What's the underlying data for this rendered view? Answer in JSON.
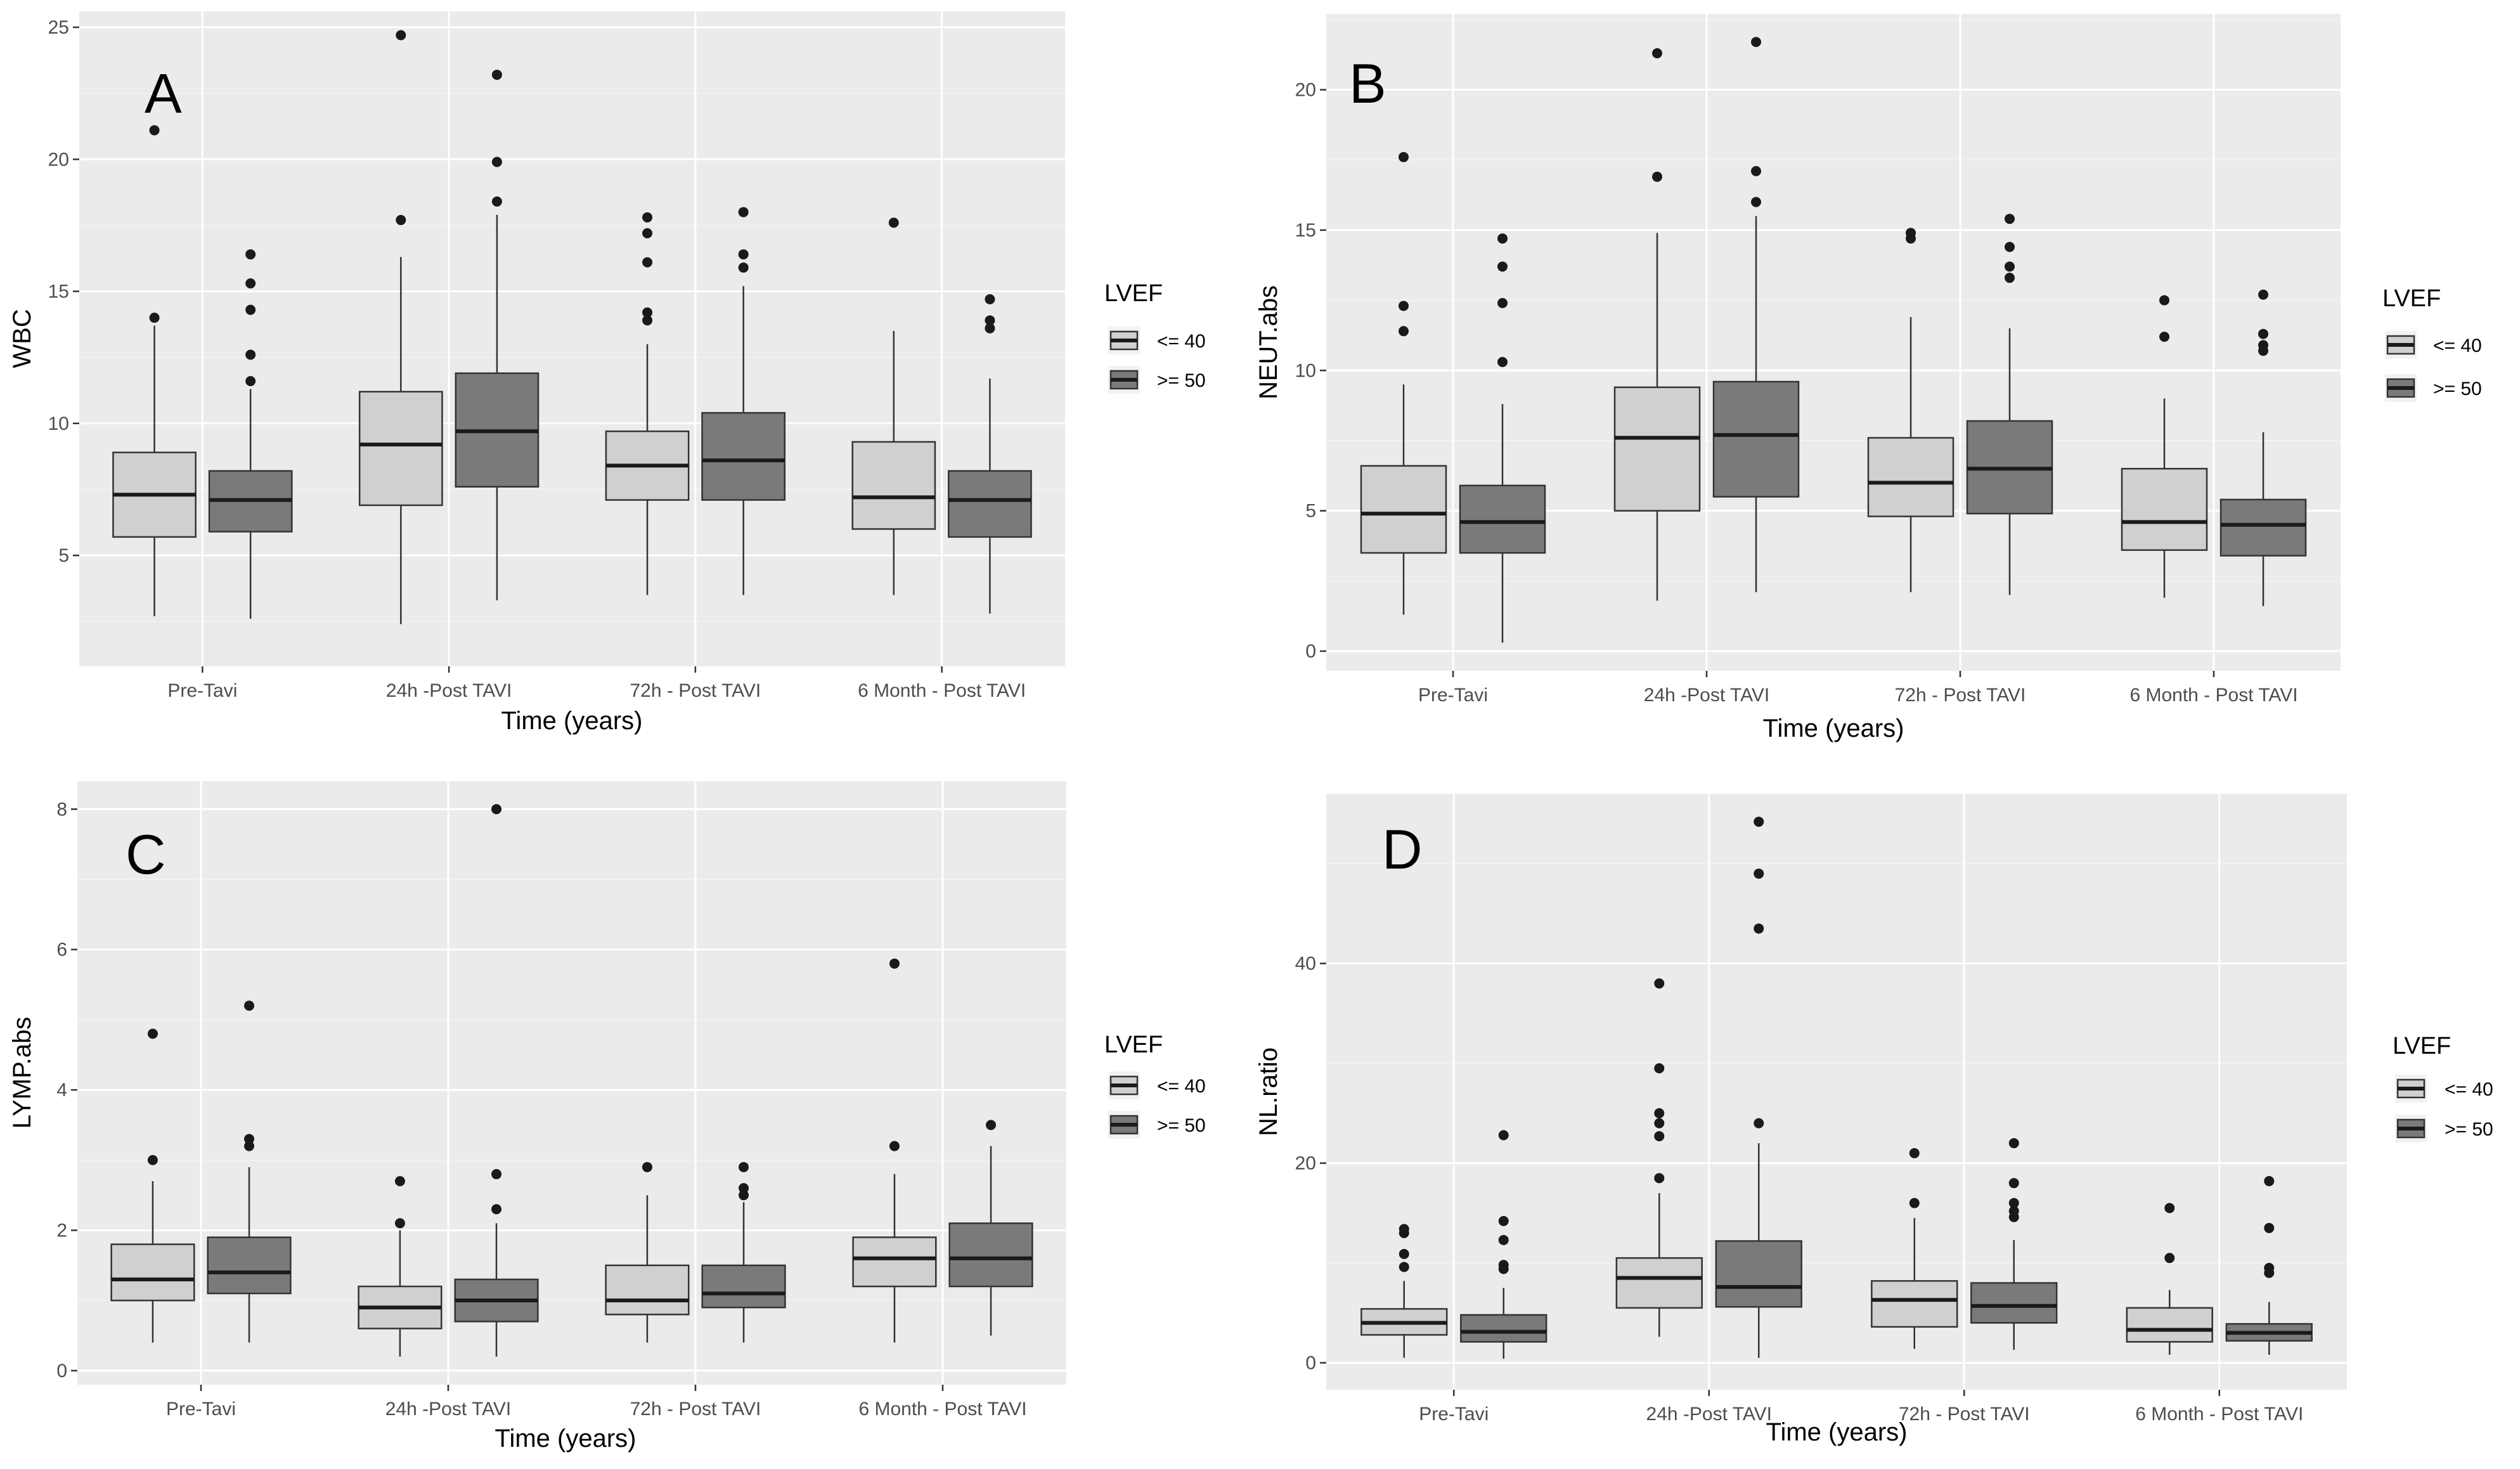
{
  "colors": {
    "le40": "#d0d0d0",
    "ge50": "#7a7a7a",
    "panel_bg": "#ebebeb"
  },
  "chart_data": [
    {
      "type": "box",
      "panel_label": "A",
      "xlabel": "Time (years)",
      "ylabel": "WBC",
      "categories": [
        "Pre-Tavi",
        "24h -Post TAVI",
        "72h - Post TAVI",
        "6 Month - Post TAVI"
      ],
      "ylim": [
        0.8,
        25.6
      ],
      "yticks": [
        5,
        10,
        15,
        20,
        25
      ],
      "grid": true,
      "legend": {
        "title": "LVEF",
        "position": "right",
        "labels": [
          "<= 40",
          ">= 50"
        ]
      },
      "series": [
        {
          "name": "<= 40",
          "boxes": [
            {
              "q1": 5.7,
              "median": 7.3,
              "q3": 8.9,
              "whisker_low": 2.7,
              "whisker_high": 13.7,
              "outliers": [
                14.0,
                21.1
              ]
            },
            {
              "q1": 6.9,
              "median": 9.2,
              "q3": 11.2,
              "whisker_low": 2.4,
              "whisker_high": 16.3,
              "outliers": [
                17.7,
                24.7
              ]
            },
            {
              "q1": 7.1,
              "median": 8.4,
              "q3": 9.7,
              "whisker_low": 3.5,
              "whisker_high": 13.0,
              "outliers": [
                13.9,
                14.2,
                16.1,
                17.2,
                17.8
              ]
            },
            {
              "q1": 6.0,
              "median": 7.2,
              "q3": 9.3,
              "whisker_low": 3.5,
              "whisker_high": 13.5,
              "outliers": [
                17.6
              ]
            }
          ]
        },
        {
          "name": ">= 50",
          "boxes": [
            {
              "q1": 5.9,
              "median": 7.1,
              "q3": 8.2,
              "whisker_low": 2.6,
              "whisker_high": 11.3,
              "outliers": [
                11.6,
                12.6,
                14.3,
                15.3,
                16.4
              ]
            },
            {
              "q1": 7.6,
              "median": 9.7,
              "q3": 11.9,
              "whisker_low": 3.3,
              "whisker_high": 17.9,
              "outliers": [
                18.4,
                19.9,
                23.2
              ]
            },
            {
              "q1": 7.1,
              "median": 8.6,
              "q3": 10.4,
              "whisker_low": 3.5,
              "whisker_high": 15.2,
              "outliers": [
                15.9,
                16.4,
                18.0
              ]
            },
            {
              "q1": 5.7,
              "median": 7.1,
              "q3": 8.2,
              "whisker_low": 2.8,
              "whisker_high": 11.7,
              "outliers": [
                13.6,
                13.9,
                14.7
              ]
            }
          ]
        }
      ]
    },
    {
      "type": "box",
      "panel_label": "B",
      "xlabel": "Time (years)",
      "ylabel": "NEUT.abs",
      "categories": [
        "Pre-Tavi",
        "24h -Post TAVI",
        "72h - Post TAVI",
        "6 Month - Post TAVI"
      ],
      "ylim": [
        -0.7,
        22.7
      ],
      "yticks": [
        0,
        5,
        10,
        15,
        20
      ],
      "grid": true,
      "legend": {
        "title": "LVEF",
        "position": "right",
        "labels": [
          "<= 40",
          ">= 50"
        ]
      },
      "series": [
        {
          "name": "<= 40",
          "boxes": [
            {
              "q1": 3.5,
              "median": 4.9,
              "q3": 6.6,
              "whisker_low": 1.3,
              "whisker_high": 9.5,
              "outliers": [
                11.4,
                12.3,
                17.6
              ]
            },
            {
              "q1": 5.0,
              "median": 7.6,
              "q3": 9.4,
              "whisker_low": 1.8,
              "whisker_high": 14.9,
              "outliers": [
                16.9,
                21.3
              ]
            },
            {
              "q1": 4.8,
              "median": 6.0,
              "q3": 7.6,
              "whisker_low": 2.1,
              "whisker_high": 11.9,
              "outliers": [
                14.7,
                14.9
              ]
            },
            {
              "q1": 3.6,
              "median": 4.6,
              "q3": 6.5,
              "whisker_low": 1.9,
              "whisker_high": 9.0,
              "outliers": [
                11.2,
                12.5
              ]
            }
          ]
        },
        {
          "name": ">= 50",
          "boxes": [
            {
              "q1": 3.5,
              "median": 4.6,
              "q3": 5.9,
              "whisker_low": 0.3,
              "whisker_high": 8.8,
              "outliers": [
                10.3,
                12.4,
                13.7,
                14.7
              ]
            },
            {
              "q1": 5.5,
              "median": 7.7,
              "q3": 9.6,
              "whisker_low": 2.1,
              "whisker_high": 15.5,
              "outliers": [
                16.0,
                17.1,
                21.7
              ]
            },
            {
              "q1": 4.9,
              "median": 6.5,
              "q3": 8.2,
              "whisker_low": 2.0,
              "whisker_high": 11.5,
              "outliers": [
                13.3,
                13.7,
                14.4,
                15.4
              ]
            },
            {
              "q1": 3.4,
              "median": 4.5,
              "q3": 5.4,
              "whisker_low": 1.6,
              "whisker_high": 7.8,
              "outliers": [
                10.7,
                10.9,
                11.3,
                12.7
              ]
            }
          ]
        }
      ]
    },
    {
      "type": "box",
      "panel_label": "C",
      "xlabel": "Time (years)",
      "ylabel": "LYMP.abs",
      "categories": [
        "Pre-Tavi",
        "24h -Post TAVI",
        "72h - Post TAVI",
        "6 Month - Post TAVI"
      ],
      "ylim": [
        -0.2,
        8.4
      ],
      "yticks": [
        0,
        2,
        4,
        6,
        8
      ],
      "grid": true,
      "legend": {
        "title": "LVEF",
        "position": "right",
        "labels": [
          "<= 40",
          ">= 50"
        ]
      },
      "series": [
        {
          "name": "<= 40",
          "boxes": [
            {
              "q1": 1.0,
              "median": 1.3,
              "q3": 1.8,
              "whisker_low": 0.4,
              "whisker_high": 2.7,
              "outliers": [
                3.0,
                4.8
              ]
            },
            {
              "q1": 0.6,
              "median": 0.9,
              "q3": 1.2,
              "whisker_low": 0.2,
              "whisker_high": 2.0,
              "outliers": [
                2.1,
                2.7
              ]
            },
            {
              "q1": 0.8,
              "median": 1.0,
              "q3": 1.5,
              "whisker_low": 0.4,
              "whisker_high": 2.5,
              "outliers": [
                2.9
              ]
            },
            {
              "q1": 1.2,
              "median": 1.6,
              "q3": 1.9,
              "whisker_low": 0.4,
              "whisker_high": 2.8,
              "outliers": [
                3.2,
                5.8
              ]
            }
          ]
        },
        {
          "name": ">= 50",
          "boxes": [
            {
              "q1": 1.1,
              "median": 1.4,
              "q3": 1.9,
              "whisker_low": 0.4,
              "whisker_high": 2.9,
              "outliers": [
                3.2,
                3.3,
                5.2
              ]
            },
            {
              "q1": 0.7,
              "median": 1.0,
              "q3": 1.3,
              "whisker_low": 0.2,
              "whisker_high": 2.1,
              "outliers": [
                2.3,
                2.8,
                8.0
              ]
            },
            {
              "q1": 0.9,
              "median": 1.1,
              "q3": 1.5,
              "whisker_low": 0.4,
              "whisker_high": 2.4,
              "outliers": [
                2.5,
                2.6,
                2.9
              ]
            },
            {
              "q1": 1.2,
              "median": 1.6,
              "q3": 2.1,
              "whisker_low": 0.5,
              "whisker_high": 3.2,
              "outliers": [
                3.5
              ]
            }
          ]
        }
      ]
    },
    {
      "type": "box",
      "panel_label": "D",
      "xlabel": "Time (years)",
      "ylabel": "NL.ratio",
      "categories": [
        "Pre-Tavi",
        "24h -Post TAVI",
        "72h - Post TAVI",
        "6 Month - Post TAVI"
      ],
      "ylim": [
        -2.7,
        57.0
      ],
      "yticks": [
        0,
        20,
        40
      ],
      "grid": true,
      "legend": {
        "title": "LVEF",
        "position": "right",
        "labels": [
          "<= 40",
          ">= 50"
        ]
      },
      "series": [
        {
          "name": "<= 40",
          "boxes": [
            {
              "q1": 2.8,
              "median": 4.0,
              "q3": 5.4,
              "whisker_low": 0.5,
              "whisker_high": 8.2,
              "outliers": [
                9.6,
                10.9,
                13.0,
                13.4
              ]
            },
            {
              "q1": 5.5,
              "median": 8.5,
              "q3": 10.5,
              "whisker_low": 2.6,
              "whisker_high": 17.0,
              "outliers": [
                18.5,
                22.7,
                24.0,
                25.0,
                29.5,
                38.0
              ]
            },
            {
              "q1": 3.6,
              "median": 6.3,
              "q3": 8.2,
              "whisker_low": 1.4,
              "whisker_high": 14.5,
              "outliers": [
                16.0,
                21.0
              ]
            },
            {
              "q1": 2.1,
              "median": 3.3,
              "q3": 5.5,
              "whisker_low": 0.8,
              "whisker_high": 7.3,
              "outliers": [
                10.5,
                15.5
              ]
            }
          ]
        },
        {
          "name": ">= 50",
          "boxes": [
            {
              "q1": 2.1,
              "median": 3.1,
              "q3": 4.8,
              "whisker_low": 0.4,
              "whisker_high": 7.5,
              "outliers": [
                9.4,
                9.8,
                12.3,
                14.2,
                22.8
              ]
            },
            {
              "q1": 5.6,
              "median": 7.6,
              "q3": 12.2,
              "whisker_low": 0.5,
              "whisker_high": 22.0,
              "outliers": [
                24.0,
                43.5,
                49.0,
                54.2
              ]
            },
            {
              "q1": 4.0,
              "median": 5.7,
              "q3": 8.0,
              "whisker_low": 1.3,
              "whisker_high": 12.3,
              "outliers": [
                14.6,
                15.2,
                16.0,
                18.0,
                22.0
              ]
            },
            {
              "q1": 2.2,
              "median": 3.0,
              "q3": 3.9,
              "whisker_low": 0.8,
              "whisker_high": 6.1,
              "outliers": [
                9.0,
                9.5,
                13.5,
                18.2
              ]
            }
          ]
        }
      ]
    }
  ]
}
